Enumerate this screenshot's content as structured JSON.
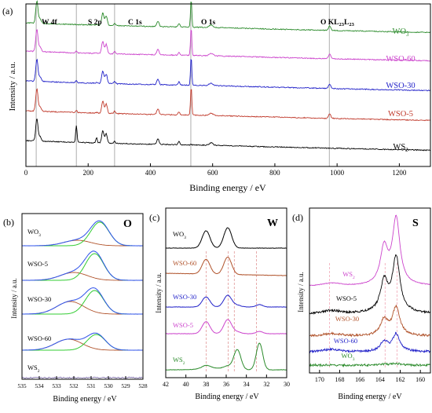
{
  "colors": {
    "WS2": "#000000",
    "WSO-5": "#c0392b",
    "WSO-30": "#1f1fc8",
    "WSO-60": "#cc44cc",
    "WO3": "#2a8a2a",
    "green_fit": "#33cc33",
    "brown_fit": "#b0522a",
    "blue_fit": "#3355ee",
    "teal_fit": "#2aa0b8"
  },
  "chart_data": [
    {
      "panel": "(a)",
      "type": "line",
      "xlabel": "Binding energy / eV",
      "ylabel": "Intensity / a.u.",
      "xlim": [
        0,
        1300
      ],
      "xticks": [
        "0",
        "200",
        "400",
        "600",
        "800",
        "1000",
        "1200"
      ],
      "peak_labels": [
        {
          "text": "W 4f",
          "x": 33
        },
        {
          "text": "S 2p",
          "x": 162
        },
        {
          "text": "C 1s",
          "x": 285
        },
        {
          "text": "O 1s",
          "x": 530
        },
        {
          "text": "O KL",
          "sub": "23",
          "text2": "L",
          "sub2": "23",
          "x": 975
        }
      ],
      "series": [
        {
          "name": "WO",
          "sub": "3",
          "offset": 4
        },
        {
          "name": "WSO-60",
          "sub": "",
          "offset": 3
        },
        {
          "name": "WSO-30",
          "sub": "",
          "offset": 2
        },
        {
          "name": "WSO-5",
          "sub": "",
          "offset": 1
        },
        {
          "name": "WS",
          "sub": "2",
          "offset": 0
        }
      ]
    },
    {
      "panel": "(b)",
      "type": "line",
      "element": "O",
      "xlabel": "Binding energy / eV",
      "ylabel": "Intensity / a.u.",
      "xlim": [
        535,
        528
      ],
      "xticks": [
        "535",
        "534",
        "533",
        "532",
        "531",
        "530",
        "529",
        "528"
      ],
      "series": [
        {
          "name": "WO",
          "sub": "3"
        },
        {
          "name": "WSO-5",
          "sub": ""
        },
        {
          "name": "WSO-30",
          "sub": ""
        },
        {
          "name": "WSO-60",
          "sub": ""
        },
        {
          "name": "WS",
          "sub": "2"
        }
      ]
    },
    {
      "panel": "(c)",
      "type": "line",
      "element": "W",
      "xlabel": "Binding energy / eV",
      "ylabel": "Intensity / a.u.",
      "xlim": [
        42,
        30
      ],
      "xticks": [
        "42",
        "40",
        "38",
        "36",
        "34",
        "32",
        "30"
      ],
      "series": [
        {
          "name": "WO",
          "sub": "3"
        },
        {
          "name": "WSO-60",
          "sub": ""
        },
        {
          "name": "WSO-30",
          "sub": ""
        },
        {
          "name": "WSO-5",
          "sub": ""
        },
        {
          "name": "WS",
          "sub": "2"
        }
      ]
    },
    {
      "panel": "(d)",
      "type": "line",
      "element": "S",
      "xlabel": "Binding energy / eV",
      "ylabel": "Intensity / a.u.",
      "xlim": [
        171,
        159
      ],
      "xticks": [
        "170",
        "168",
        "166",
        "164",
        "162",
        "160"
      ],
      "series": [
        {
          "name": "WS",
          "sub": "2"
        },
        {
          "name": "WSO-5",
          "sub": ""
        },
        {
          "name": "WSO-30",
          "sub": ""
        },
        {
          "name": "WSO-60",
          "sub": ""
        },
        {
          "name": "WO",
          "sub": "3"
        }
      ]
    }
  ]
}
